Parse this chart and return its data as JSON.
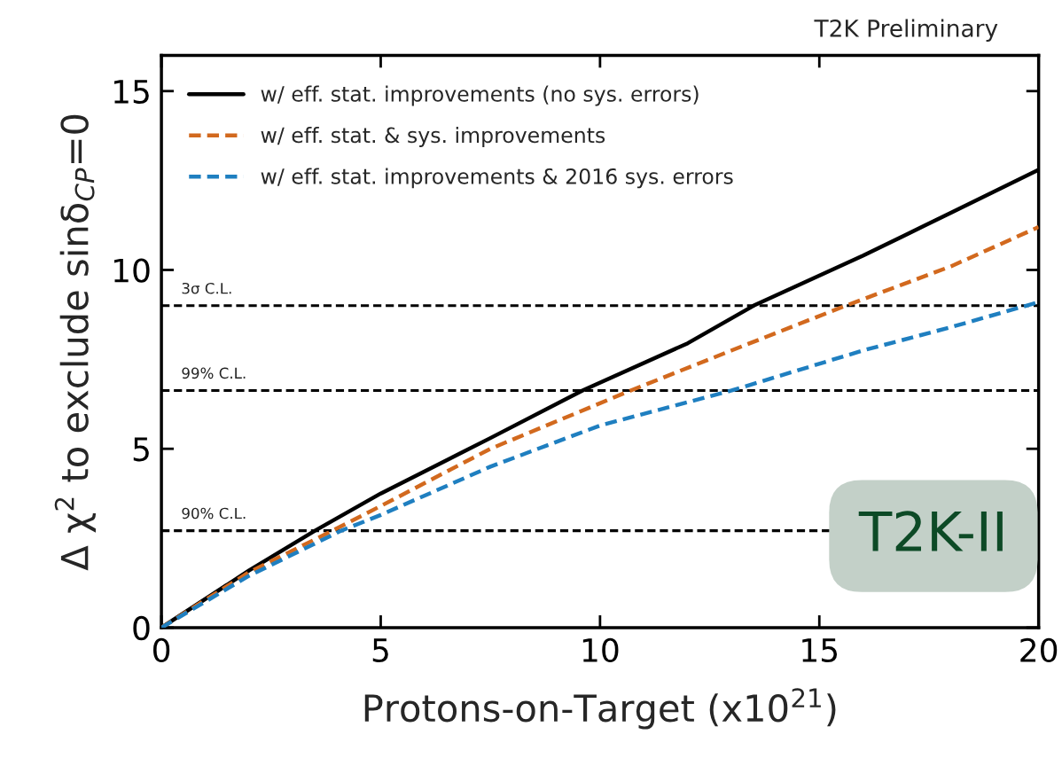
{
  "chart_data": {
    "type": "line",
    "xlabel": "Protons-on-Target (x10$^{21}$)",
    "ylabel": "Δ χ$^{2}$ to exclude sinδ$_{CP}$=0",
    "xlim": [
      0,
      20
    ],
    "ylim": [
      0,
      16
    ],
    "xticks": [
      0,
      5,
      10,
      15,
      20
    ],
    "yticks": [
      0,
      5,
      10,
      15
    ],
    "grid": false,
    "legend": "top left",
    "series": [
      {
        "name": "w/ eff. stat. improvements (no sys. errors)",
        "color": "#000000",
        "line_style": "solid",
        "x": [
          0,
          2,
          3.5,
          5,
          7.5,
          9.6,
          12,
          13.5,
          16,
          18,
          20
        ],
        "values": [
          0,
          1.6,
          2.71,
          3.75,
          5.3,
          6.63,
          7.95,
          9,
          10.4,
          11.6,
          12.8
        ]
      },
      {
        "name": "w/ eff. stat. & sys. improvements",
        "color": "#d2691e",
        "line_style": "dashed",
        "x": [
          0,
          2,
          3.9,
          5,
          7.5,
          10.7,
          13,
          15.6,
          18,
          20
        ],
        "values": [
          0,
          1.55,
          2.71,
          3.4,
          5.0,
          6.63,
          7.75,
          9,
          10.1,
          11.2
        ]
      },
      {
        "name": "w/ eff. stat. improvements & 2016 sys. errors",
        "color": "#1f7fc0",
        "line_style": "dashed",
        "x": [
          0,
          2,
          4.1,
          5,
          7.5,
          10,
          13,
          16,
          18,
          20
        ],
        "values": [
          0,
          1.45,
          2.71,
          3.15,
          4.5,
          5.65,
          6.63,
          7.75,
          8.4,
          9.1
        ]
      }
    ],
    "ref_lines": [
      {
        "axis": "y",
        "value": 9,
        "label": "3σ C.L.",
        "color": "#000000",
        "line_style": "dashed"
      },
      {
        "axis": "y",
        "value": 6.63,
        "label": "99% C.L.",
        "color": "#000000",
        "line_style": "dashed"
      },
      {
        "axis": "y",
        "value": 2.71,
        "label": "90% C.L.",
        "color": "#000000",
        "line_style": "dashed"
      }
    ],
    "annotations": [
      "T2K Preliminary",
      "T2K-II"
    ]
  }
}
